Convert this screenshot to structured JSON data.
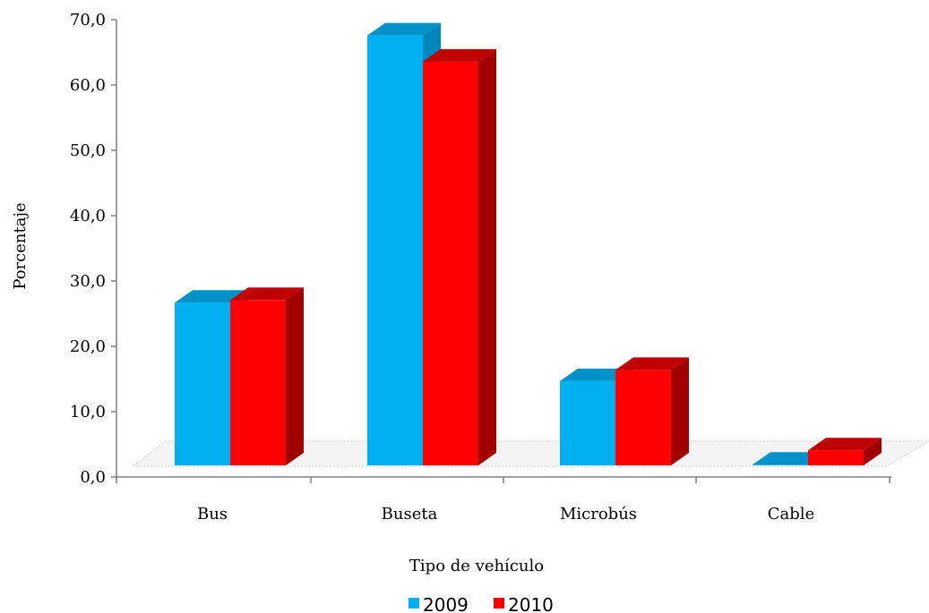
{
  "chart_data": {
    "type": "bar",
    "categories": [
      "Bus",
      "Buseta",
      "Microbús",
      "Cable"
    ],
    "series": [
      {
        "name": "2009",
        "values": [
          24.9,
          65.8,
          12.9,
          0.1
        ],
        "color": "#00B0F0",
        "side_color": "#0086B8",
        "top_color": "#0092C8"
      },
      {
        "name": "2010",
        "values": [
          25.3,
          61.8,
          14.6,
          2.3
        ],
        "color": "#FF0000",
        "side_color": "#A00000",
        "top_color": "#C00000"
      }
    ],
    "xlabel": "Tipo de vehículo",
    "ylabel": "Porcentaje",
    "ylim": [
      0,
      70
    ],
    "yticks": [
      "0,0",
      "10,0",
      "20,0",
      "30,0",
      "40,0",
      "50,0",
      "60,0",
      "70,0"
    ],
    "legend_position": "bottom",
    "grid": false
  }
}
